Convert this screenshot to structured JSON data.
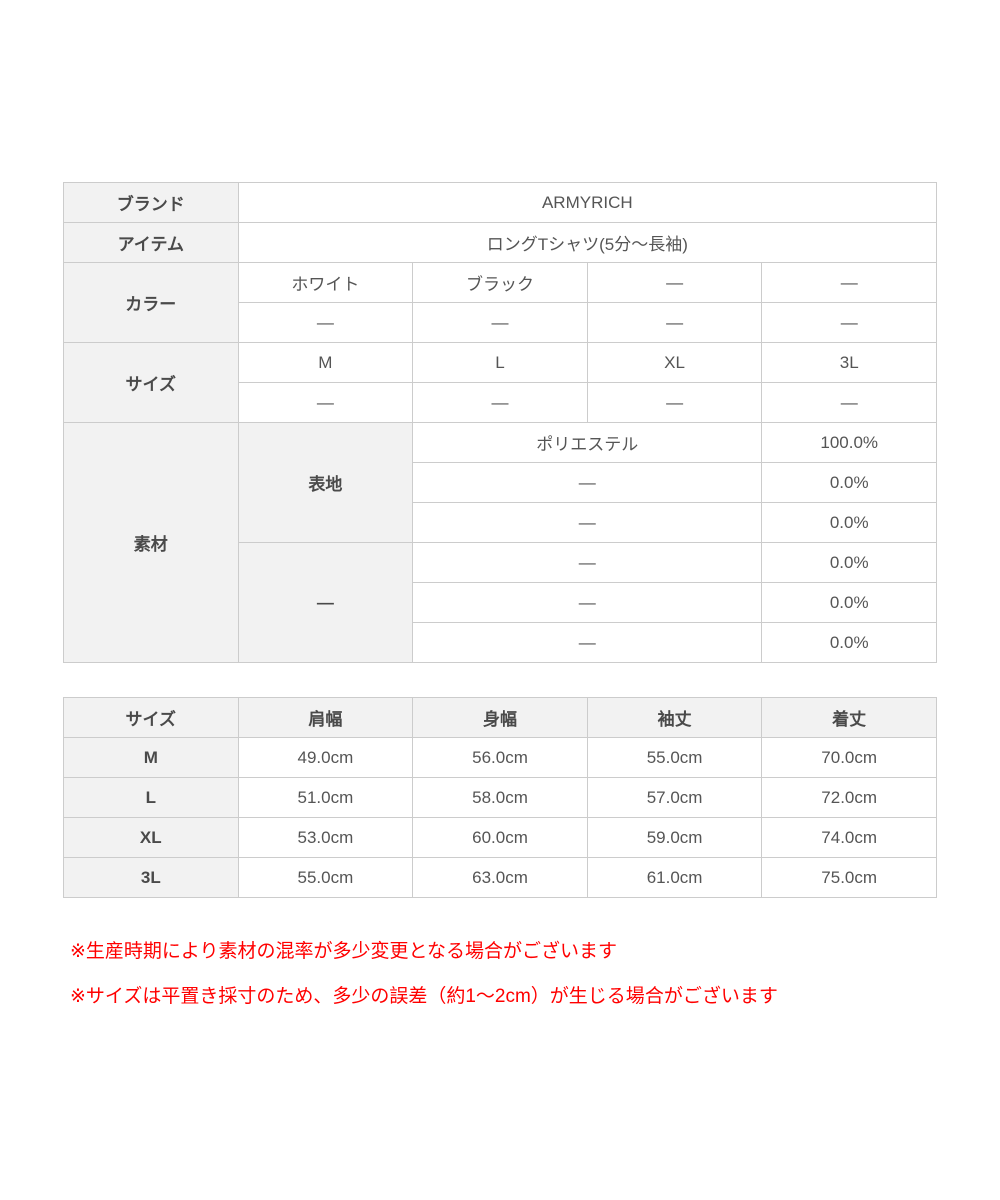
{
  "colors": {
    "header_bg": "#f2f2f2",
    "border": "#cccccc",
    "label_text": "#4a4a4a",
    "value_text": "#555555",
    "note_text": "#ff0000"
  },
  "product_table": {
    "brand_label": "ブランド",
    "brand_value": "ARMYRICH",
    "item_label": "アイテム",
    "item_value": "ロングTシャツ(5分～長袖)",
    "color_label": "カラー",
    "color_row1": [
      "ホワイト",
      "ブラック",
      "—",
      "—"
    ],
    "color_row2": [
      "—",
      "—",
      "—",
      "—"
    ],
    "size_label": "サイズ",
    "size_row1": [
      "M",
      "L",
      "XL",
      "3L"
    ],
    "size_row2": [
      "—",
      "—",
      "—",
      "—"
    ],
    "material_label": "素材",
    "material_groups": [
      {
        "group_label": "表地",
        "rows": [
          {
            "name": "ポリエステル",
            "pct": "100.0%"
          },
          {
            "name": "—",
            "pct": "0.0%"
          },
          {
            "name": "—",
            "pct": "0.0%"
          }
        ]
      },
      {
        "group_label": "—",
        "rows": [
          {
            "name": "—",
            "pct": "0.0%"
          },
          {
            "name": "—",
            "pct": "0.0%"
          },
          {
            "name": "—",
            "pct": "0.0%"
          }
        ]
      }
    ]
  },
  "size_table": {
    "headers": [
      "サイズ",
      "肩幅",
      "身幅",
      "袖丈",
      "着丈"
    ],
    "rows": [
      {
        "size": "M",
        "values": [
          "49.0cm",
          "56.0cm",
          "55.0cm",
          "70.0cm"
        ]
      },
      {
        "size": "L",
        "values": [
          "51.0cm",
          "58.0cm",
          "57.0cm",
          "72.0cm"
        ]
      },
      {
        "size": "XL",
        "values": [
          "53.0cm",
          "60.0cm",
          "59.0cm",
          "74.0cm"
        ]
      },
      {
        "size": "3L",
        "values": [
          "55.0cm",
          "63.0cm",
          "61.0cm",
          "75.0cm"
        ]
      }
    ]
  },
  "notes": [
    "※生産時期により素材の混率が多少変更となる場合がございます",
    "※サイズは平置き採寸のため、多少の誤差（約1～2cm）が生じる場合がございます"
  ]
}
